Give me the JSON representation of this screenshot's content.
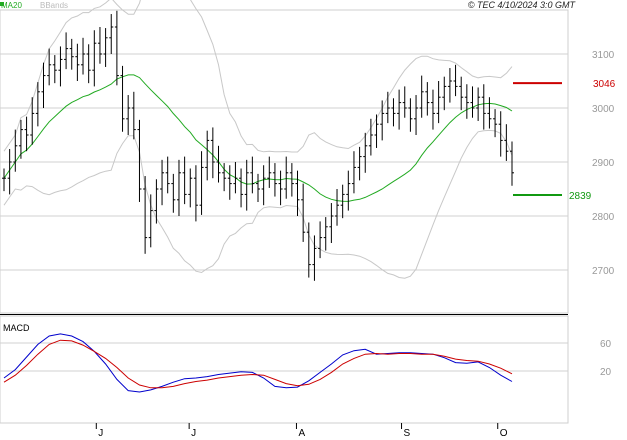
{
  "header": {
    "legend_ma": "MA20",
    "legend_bb": "BBands",
    "source": "© TEC 4/10/2024 3:0 GMT"
  },
  "colors": {
    "price": "#000000",
    "ma": "#22aa22",
    "bbands": "#c8c8c8",
    "grid": "#d0d0d0",
    "resistance": "#cc0000",
    "support": "#119911",
    "macd": "#0000cc",
    "signal": "#cc0000",
    "axis_text": "#999999"
  },
  "chart_data": [
    {
      "type": "ohlc",
      "name": "price",
      "x_range": [
        0,
        100
      ],
      "ylim": [
        2640,
        3170
      ],
      "yticks": [
        2700,
        2800,
        2900,
        3000,
        3100
      ],
      "ytick_labels": [
        "2700",
        "2800",
        "2900",
        "3000",
        "3100"
      ],
      "xticks": [
        {
          "label": "J",
          "x": 16.6
        },
        {
          "label": "J",
          "x": 33.3
        },
        {
          "label": "A",
          "x": 52.6
        },
        {
          "label": "S",
          "x": 71.5
        },
        {
          "label": "O",
          "x": 88.8
        }
      ],
      "close_x": [
        0,
        1,
        2,
        3,
        4,
        5,
        6,
        7,
        8,
        9,
        10,
        11,
        12,
        13,
        14,
        15,
        16,
        17,
        18,
        19,
        20,
        21,
        22,
        23,
        24,
        25,
        26,
        27,
        28,
        29,
        30,
        31,
        32,
        33,
        34,
        35,
        36,
        37,
        38,
        39,
        40,
        41,
        42,
        43,
        44,
        45,
        46,
        47,
        48,
        49,
        50,
        51,
        52,
        53,
        54,
        55,
        56,
        57,
        58,
        59,
        60,
        61,
        62,
        63,
        64,
        65,
        66,
        67,
        68,
        69,
        70,
        71,
        72,
        73,
        74,
        75,
        76,
        77,
        78,
        79,
        80,
        81,
        82,
        83,
        84,
        85,
        86,
        87,
        88,
        89,
        90
      ],
      "close": [
        2870,
        2900,
        2930,
        2960,
        2950,
        2990,
        3030,
        3060,
        3080,
        3070,
        3090,
        3110,
        3095,
        3080,
        3100,
        3070,
        3120,
        3100,
        3130,
        3150,
        3060,
        2980,
        3000,
        2960,
        2850,
        2760,
        2810,
        2850,
        2880,
        2860,
        2830,
        2880,
        2840,
        2870,
        2820,
        2890,
        2940,
        2900,
        2880,
        2870,
        2860,
        2870,
        2840,
        2880,
        2860,
        2850,
        2870,
        2880,
        2860,
        2850,
        2880,
        2860,
        2830,
        2770,
        2710,
        2740,
        2760,
        2780,
        2800,
        2820,
        2840,
        2860,
        2890,
        2910,
        2930,
        2950,
        2970,
        2990,
        3000,
        2990,
        3010,
        3000,
        2980,
        3000,
        3030,
        3010,
        2990,
        3020,
        3040,
        3050,
        3040,
        3020,
        3010,
        3000,
        3020,
        2990,
        2980,
        2970,
        2940,
        2920,
        2880
      ],
      "support": 2839,
      "support_label": "2839",
      "resistance": 3046,
      "resistance_label": "3046",
      "indicators": [
        "MA20",
        "BBands"
      ]
    },
    {
      "type": "line",
      "name": "MACD",
      "title": "MACD",
      "ylim": [
        -10,
        90
      ],
      "yticks": [
        20,
        60
      ],
      "ytick_labels": [
        "20",
        "60"
      ],
      "x": [
        0,
        2,
        4,
        6,
        8,
        10,
        12,
        14,
        16,
        18,
        20,
        22,
        24,
        26,
        28,
        30,
        32,
        34,
        36,
        38,
        40,
        42,
        44,
        46,
        48,
        50,
        52,
        54,
        56,
        58,
        60,
        62,
        64,
        66,
        68,
        70,
        72,
        74,
        76,
        78,
        80,
        82,
        84,
        86,
        88,
        90
      ],
      "series": [
        {
          "name": "MACD",
          "values": [
            10,
            22,
            40,
            58,
            70,
            73,
            70,
            62,
            48,
            30,
            8,
            -8,
            -10,
            -7,
            -2,
            4,
            9,
            10,
            12,
            15,
            17,
            19,
            18,
            10,
            -2,
            -4,
            -3,
            6,
            18,
            30,
            43,
            49,
            51,
            44,
            45,
            46,
            46,
            45,
            44,
            39,
            32,
            31,
            33,
            25,
            14,
            5
          ]
        },
        {
          "name": "Signal",
          "values": [
            4,
            14,
            28,
            44,
            58,
            64,
            63,
            57,
            48,
            38,
            25,
            10,
            0,
            -4,
            -4,
            -2,
            2,
            5,
            7,
            10,
            12,
            14,
            15,
            14,
            8,
            2,
            -1,
            1,
            8,
            18,
            30,
            38,
            44,
            45,
            44,
            45,
            45,
            44,
            44,
            41,
            37,
            35,
            34,
            30,
            24,
            16
          ]
        }
      ]
    }
  ]
}
